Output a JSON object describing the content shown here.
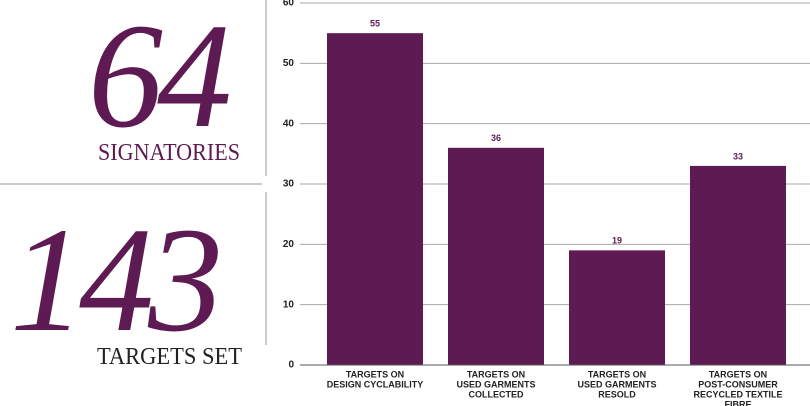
{
  "stats": [
    {
      "value": "64",
      "label": "SIGNATORIES"
    },
    {
      "value": "143",
      "label": "TARGETS SET"
    }
  ],
  "chart_data": {
    "type": "bar",
    "categories": [
      [
        "TARGETS ON",
        "DESIGN CYCLABILITY"
      ],
      [
        "TARGETS ON",
        "USED GARMENTS",
        "COLLECTED"
      ],
      [
        "TARGETS ON",
        "USED GARMENTS",
        "RESOLD"
      ],
      [
        "TARGETS ON",
        "POST-CONSUMER",
        "RECYCLED TEXTILE",
        "FIBRE"
      ]
    ],
    "values": [
      55,
      36,
      19,
      33
    ],
    "color": "#5e1a52",
    "ylim": [
      0,
      60
    ],
    "yticks": [
      0,
      10,
      20,
      30,
      40,
      50,
      60
    ],
    "grid": true
  }
}
